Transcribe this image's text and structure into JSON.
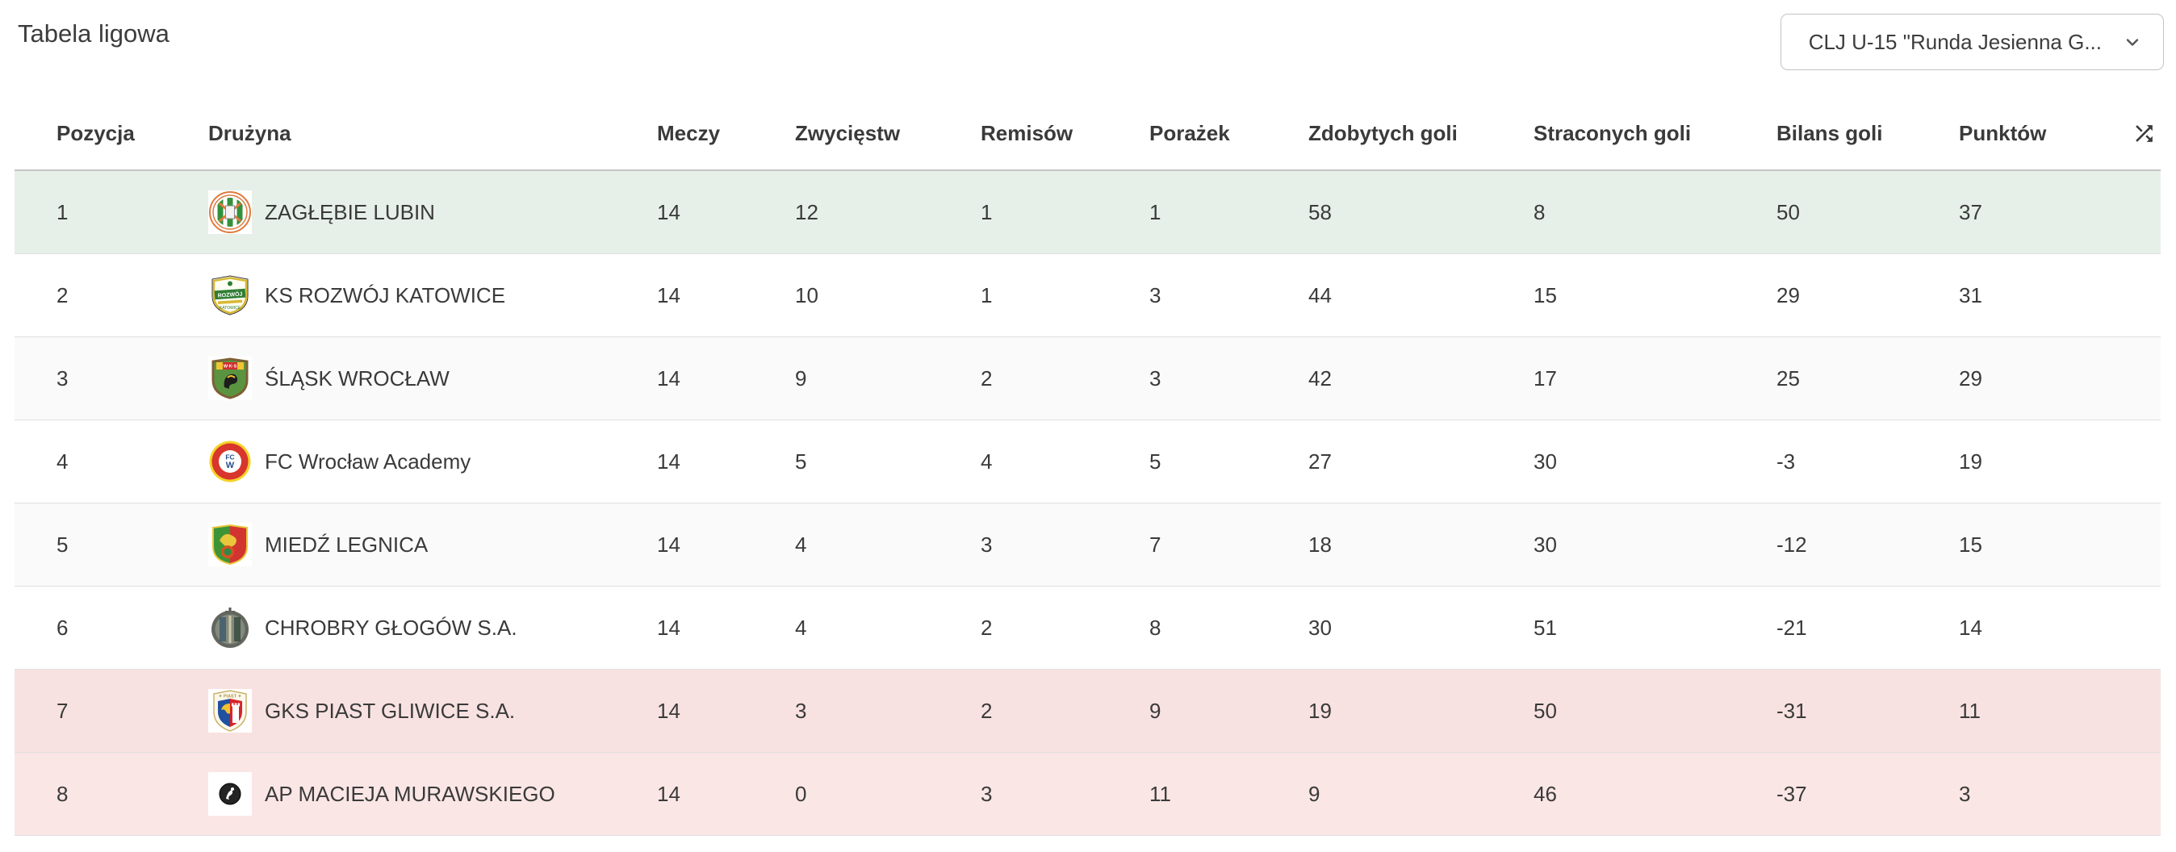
{
  "page": {
    "title": "Tabela ligowa"
  },
  "filter": {
    "value": "CLJ U-15 \"Runda Jesienna G...",
    "chevron_icon": "chevron-down-icon"
  },
  "table": {
    "columns": [
      "Pozycja",
      "Drużyna",
      "Meczy",
      "Zwycięstw",
      "Remisów",
      "Porażek",
      "Zdobytych goli",
      "Straconych goli",
      "Bilans goli",
      "Punktów"
    ],
    "sort_icon": "shuffle-icon",
    "highlight_colors": {
      "promotion_green": "#e7f0e8",
      "relegation_pink": "#f9e3e2",
      "stripe_gray": "#fafafa",
      "plain_white": "#ffffff"
    },
    "rows": [
      {
        "position": "1",
        "badge": "zaglebie-lubin",
        "team": "ZAGŁĘBIE LUBIN",
        "matches": "14",
        "wins": "12",
        "draws": "1",
        "losses": "1",
        "goals_for": "58",
        "goals_against": "8",
        "goal_balance": "50",
        "points": "37",
        "bg": "#e7f0e8"
      },
      {
        "position": "2",
        "badge": "ks-rozwoj-katowice",
        "team": "KS ROZWÓJ KATOWICE",
        "matches": "14",
        "wins": "10",
        "draws": "1",
        "losses": "3",
        "goals_for": "44",
        "goals_against": "15",
        "goal_balance": "29",
        "points": "31",
        "bg": "#ffffff"
      },
      {
        "position": "3",
        "badge": "slask-wroclaw",
        "team": "ŚLĄSK WROCŁAW",
        "matches": "14",
        "wins": "9",
        "draws": "2",
        "losses": "3",
        "goals_for": "42",
        "goals_against": "17",
        "goal_balance": "25",
        "points": "29",
        "bg": "#fafafa"
      },
      {
        "position": "4",
        "badge": "fc-wroclaw-academy",
        "team": "FC Wrocław Academy",
        "matches": "14",
        "wins": "5",
        "draws": "4",
        "losses": "5",
        "goals_for": "27",
        "goals_against": "30",
        "goal_balance": "-3",
        "points": "19",
        "bg": "#ffffff"
      },
      {
        "position": "5",
        "badge": "miedz-legnica",
        "team": "MIEDŹ LEGNICA",
        "matches": "14",
        "wins": "4",
        "draws": "3",
        "losses": "7",
        "goals_for": "18",
        "goals_against": "30",
        "goal_balance": "-12",
        "points": "15",
        "bg": "#fafafa"
      },
      {
        "position": "6",
        "badge": "chrobry-glogow",
        "team": "CHROBRY GŁOGÓW S.A.",
        "matches": "14",
        "wins": "4",
        "draws": "2",
        "losses": "8",
        "goals_for": "30",
        "goals_against": "51",
        "goal_balance": "-21",
        "points": "14",
        "bg": "#ffffff"
      },
      {
        "position": "7",
        "badge": "gks-piast-gliwice",
        "team": "GKS PIAST GLIWICE S.A.",
        "matches": "14",
        "wins": "3",
        "draws": "2",
        "losses": "9",
        "goals_for": "19",
        "goals_against": "50",
        "goal_balance": "-31",
        "points": "11",
        "bg": "#f8e2e1"
      },
      {
        "position": "8",
        "badge": "ap-macieja-murawskiego",
        "team": "AP MACIEJA MURAWSKIEGO",
        "matches": "14",
        "wins": "0",
        "draws": "3",
        "losses": "11",
        "goals_for": "9",
        "goals_against": "46",
        "goal_balance": "-37",
        "points": "3",
        "bg": "#fae6e5"
      }
    ]
  }
}
